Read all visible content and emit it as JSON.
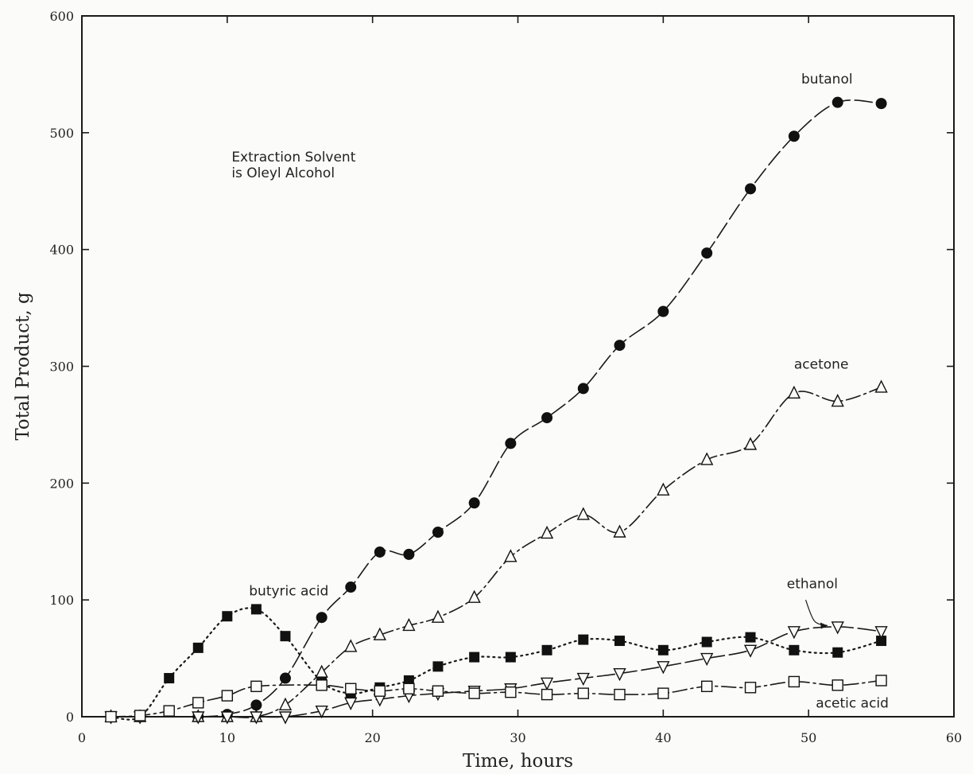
{
  "chart_data": {
    "type": "line",
    "title": "",
    "xlabel": "Time, hours",
    "ylabel": "Total Product, g",
    "xlim": [
      0,
      60
    ],
    "ylim": [
      0,
      600
    ],
    "xticks": [
      0,
      10,
      20,
      30,
      40,
      50,
      60
    ],
    "yticks": [
      0,
      100,
      200,
      300,
      400,
      500,
      600
    ],
    "grid": false,
    "legend": "none",
    "annotation": [
      "Extraction Solvent",
      "is Oleyl Alcohol"
    ],
    "series": [
      {
        "name": "butanol",
        "marker": "filled-circle",
        "line": "long-dash",
        "x": [
          2,
          4,
          8,
          10,
          12,
          14,
          16.5,
          18.5,
          20.5,
          22.5,
          24.5,
          27,
          29.5,
          32,
          34.5,
          37,
          40,
          43,
          46,
          49,
          52,
          55
        ],
        "y": [
          0,
          0,
          0,
          2,
          10,
          33,
          85,
          111,
          141,
          139,
          158,
          183,
          234,
          256,
          281,
          318,
          347,
          397,
          452,
          497,
          526,
          525
        ]
      },
      {
        "name": "acetone",
        "marker": "open-triangle-up",
        "line": "dash-dot",
        "x": [
          2,
          4,
          8,
          10,
          12,
          14,
          16.5,
          18.5,
          20.5,
          22.5,
          24.5,
          27,
          29.5,
          32,
          34.5,
          37,
          40,
          43,
          46,
          49,
          52,
          55
        ],
        "y": [
          0,
          0,
          0,
          0,
          0,
          10,
          38,
          60,
          70,
          78,
          85,
          102,
          137,
          157,
          173,
          158,
          194,
          220,
          233,
          277,
          270,
          282
        ]
      },
      {
        "name": "butyric acid",
        "marker": "filled-square",
        "line": "dotted",
        "x": [
          2,
          4,
          6,
          8,
          10,
          12,
          14,
          16.5,
          18.5,
          20.5,
          22.5,
          24.5,
          27,
          29.5,
          32,
          34.5,
          37,
          40,
          43,
          46,
          49,
          52,
          55
        ],
        "y": [
          0,
          0,
          33,
          59,
          86,
          92,
          69,
          30,
          20,
          25,
          31,
          43,
          51,
          51,
          57,
          66,
          65,
          57,
          64,
          68,
          57,
          55,
          65
        ]
      },
      {
        "name": "ethanol",
        "marker": "open-triangle-down",
        "line": "long-dash",
        "x": [
          2,
          4,
          8,
          10,
          12,
          14,
          16.5,
          18.5,
          20.5,
          22.5,
          24.5,
          27,
          29.5,
          32,
          34.5,
          37,
          40,
          43,
          46,
          49,
          52,
          55
        ],
        "y": [
          0,
          0,
          0,
          0,
          0,
          0,
          5,
          12,
          15,
          18,
          20,
          22,
          24,
          29,
          33,
          37,
          43,
          50,
          57,
          73,
          77,
          73
        ]
      },
      {
        "name": "acetic acid",
        "marker": "open-square",
        "line": "dash-dot",
        "x": [
          2,
          4,
          6,
          8,
          10,
          12,
          16.5,
          18.5,
          20.5,
          22.5,
          24.5,
          27,
          29.5,
          32,
          34.5,
          37,
          40,
          43,
          46,
          49,
          52,
          55
        ],
        "y": [
          0,
          1,
          5,
          12,
          18,
          26,
          27,
          24,
          22,
          24,
          22,
          20,
          21,
          19,
          20,
          19,
          20,
          26,
          25,
          30,
          27,
          31
        ]
      }
    ],
    "series_label_positions": {
      "butanol": [
        49.5,
        542
      ],
      "acetone": [
        49.0,
        298
      ],
      "butyric acid": [
        11.5,
        104
      ],
      "ethanol": [
        48.5,
        110
      ],
      "acetic acid": [
        50.5,
        8
      ]
    },
    "ethanol_pointer": [
      [
        49.8,
        100
      ],
      [
        50.4,
        82
      ],
      [
        51.3,
        78
      ]
    ]
  }
}
